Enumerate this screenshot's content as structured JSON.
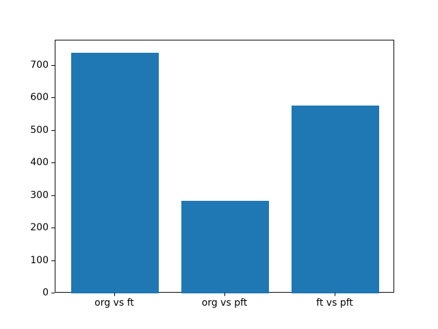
{
  "chart_data": {
    "type": "bar",
    "title": "",
    "xlabel": "",
    "ylabel": "",
    "categories": [
      "org vs ft",
      "org vs pft",
      "ft vs pft"
    ],
    "values": [
      740,
      285,
      578
    ],
    "ylim": [
      0,
      777
    ],
    "yticks": [
      0,
      100,
      200,
      300,
      400,
      500,
      600,
      700
    ],
    "bar_color": "#1f77b4",
    "axis_color": "#000000",
    "background_color": "#ffffff",
    "grid": false,
    "legend_position": "none"
  }
}
